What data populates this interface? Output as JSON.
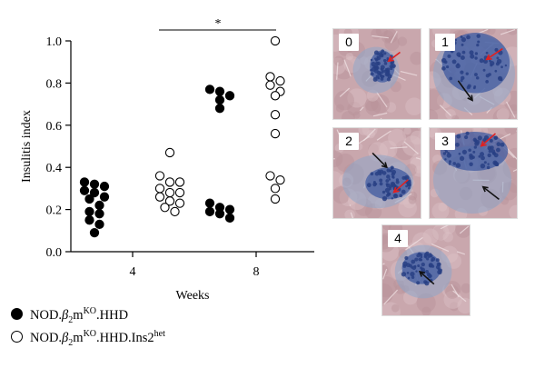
{
  "chart_data": {
    "type": "scatter",
    "title": "",
    "xlabel": "Weeks",
    "ylabel": "Insulitis index",
    "ylim": [
      0,
      1.0
    ],
    "yticks": [
      "0.0",
      "0.2",
      "0.4",
      "0.6",
      "0.8",
      "1.0"
    ],
    "xticks": [
      "4",
      "8"
    ],
    "significance": {
      "label": "*",
      "between": [
        "NOD.β2mKO.HHD week 4",
        "NOD.β2mKO.HHD.Ins2het week 8"
      ]
    },
    "groups": [
      {
        "week": "4",
        "series": "NOD.β2mKO.HHD",
        "marker": "filled",
        "values": [
          0.32,
          0.29,
          0.31,
          0.33,
          0.28,
          0.25,
          0.26,
          0.19,
          0.18,
          0.22,
          0.15,
          0.13,
          0.09
        ]
      },
      {
        "week": "4",
        "series": "NOD.β2mKO.HHD.Ins2het",
        "marker": "open",
        "values": [
          0.47,
          0.36,
          0.33,
          0.33,
          0.3,
          0.28,
          0.28,
          0.26,
          0.24,
          0.23,
          0.21,
          0.19
        ]
      },
      {
        "week": "8",
        "series": "NOD.β2mKO.HHD",
        "marker": "filled",
        "values": [
          0.77,
          0.76,
          0.74,
          0.72,
          0.68,
          0.23,
          0.21,
          0.2,
          0.19,
          0.18,
          0.16
        ]
      },
      {
        "week": "8",
        "series": "NOD.β2mKO.HHD.Ins2het",
        "marker": "open",
        "values": [
          1.0,
          0.83,
          0.81,
          0.79,
          0.76,
          0.74,
          0.65,
          0.56,
          0.36,
          0.34,
          0.3,
          0.25
        ]
      }
    ]
  },
  "legend": {
    "filled": {
      "prefix": "NOD.",
      "beta": "β",
      "sub": "2",
      "m": "m",
      "sup": "KO",
      "suffix": ".HHD",
      "sup2": ""
    },
    "open": {
      "prefix": "NOD.",
      "beta": "β",
      "sub": "2",
      "m": "m",
      "sup": "KO",
      "suffix": ".HHD.Ins2",
      "sup2": "het"
    }
  },
  "panels": [
    {
      "label": "0",
      "red_arrows": 1,
      "black_arrows": 0
    },
    {
      "label": "1",
      "red_arrows": 1,
      "black_arrows": 1
    },
    {
      "label": "2",
      "red_arrows": 1,
      "black_arrows": 1
    },
    {
      "label": "3",
      "red_arrows": 1,
      "black_arrows": 1
    },
    {
      "label": "4",
      "red_arrows": 0,
      "black_arrows": 1
    }
  ],
  "colors": {
    "tissue": "#c9a7ad",
    "tissue_light": "#dcc2c6",
    "islet": "#3f5aa0",
    "islet_light": "#8ea5c8",
    "red_arrow": "#e02020",
    "black_arrow": "#111111"
  }
}
